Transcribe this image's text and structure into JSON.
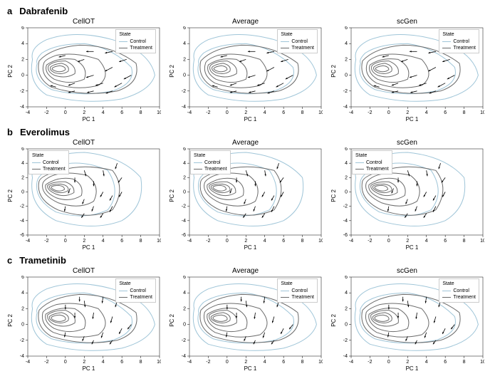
{
  "global": {
    "xlabel": "PC 1",
    "ylabel": "PC 2",
    "legend_title": "State",
    "legend_items": [
      {
        "label": "Control",
        "color": "#9fc5d8"
      },
      {
        "label": "Treatment",
        "color": "#6b6b6b"
      }
    ],
    "control_color": "#9fc5d8",
    "treatment_color": "#6b6b6b",
    "arrow_color": "#000000",
    "background": "#ffffff",
    "axis_fontsize": 8,
    "tick_fontsize": 7,
    "title_fontsize": 10
  },
  "rows": [
    {
      "key": "a",
      "label": "a",
      "title": "Dabrafenib",
      "xlim": [
        -4,
        10
      ],
      "ylim": [
        -4,
        6
      ],
      "xticks": [
        -4,
        -2,
        0,
        2,
        4,
        6,
        8,
        10
      ],
      "yticks": [
        -4,
        -2,
        0,
        2,
        4,
        6
      ],
      "panels": [
        {
          "title": "CellOT",
          "legend_pos": "tr"
        },
        {
          "title": "Average",
          "legend_pos": "tr"
        },
        {
          "title": "scGen",
          "legend_pos": "tr"
        }
      ],
      "contours": {
        "control": [
          "M-3.5,2 Q-4,-1 -2,-2.5 Q2,-3.8 6,-3 Q9,-2 9.5,0 Q9,3 5,4.5 Q1,5.8 -2,4.5 Q-3.8,3.5 -3.5,2 Z",
          "M-3,1.5 Q-3.5,-0.5 -1.5,-1.8 Q1.5,-2.8 5,-2 Q7.5,-1 7,1 Q5,3.5 2,4 Q-1,4 -2.5,2.8 Q-3.2,2 -3,1.5 Z"
        ],
        "treatment": [
          "M-2.8,1.8 Q-3.2,-0.3 -1.5,-1.5 Q2,-2.8 5.5,-2 Q8,-1 7.5,1.5 Q5,3.8 1.5,3.8 Q-1.5,3.5 -2.8,1.8 Z",
          "M-2.3,1.5 Q-2.7,0 -1.3,-1 Q1,-2 3.5,-1.3 Q5,0 3.5,2 Q1,3 -1,2.5 Q-2.2,2 -2.3,1.5 Z",
          "M-2,1.3 Q-2.3,0.3 -1.2,-0.5 Q0.5,-1.3 2,-0.5 Q2.5,1 1,2 Q-0.8,2.3 -2,1.3 Z",
          "M-1.8,1.2 Q-2,0.5 -1.2,0 Q0,-0.5 1,0.2 Q1.2,1.2 0,1.8 Q-1.3,1.8 -1.8,1.2 Z",
          "M-1.6,1 Q-1.7,0.6 -1.1,0.3 Q-0.3,0 0.3,0.5 Q0.5,1.2 -0.4,1.5 Q-1.3,1.4 -1.6,1 Z",
          "M-1.4,0.9 Q-1.5,0.7 -1,0.5 Q-0.4,0.3 0,0.7 Q0,1.1 -0.6,1.2 Q-1.2,1.1 -1.4,0.9 Z"
        ]
      },
      "arrows": [
        [
          3,
          3,
          2.2,
          3
        ],
        [
          5,
          3,
          4.2,
          2.8
        ],
        [
          6.5,
          2,
          5.7,
          1.7
        ],
        [
          5,
          1,
          4.2,
          0.5
        ],
        [
          3,
          0,
          2.2,
          -0.3
        ],
        [
          1,
          -1,
          0.3,
          -1.3
        ],
        [
          4,
          -1,
          3.2,
          -1.3
        ],
        [
          6,
          -1,
          5.2,
          -1.5
        ],
        [
          7,
          0,
          6.2,
          -0.5
        ],
        [
          2,
          2,
          1.3,
          1.7
        ],
        [
          0,
          2.5,
          -0.7,
          2.3
        ],
        [
          1,
          -2,
          0.3,
          -2.2
        ],
        [
          5,
          -2,
          4.3,
          -2.3
        ],
        [
          3,
          -2,
          2.3,
          -2.2
        ],
        [
          -1,
          -1.5,
          -1.6,
          -1.3
        ]
      ]
    },
    {
      "key": "b",
      "label": "b",
      "title": "Everolimus",
      "xlim": [
        -4,
        10
      ],
      "ylim": [
        -6,
        6
      ],
      "xticks": [
        -4,
        -2,
        0,
        2,
        4,
        6,
        8,
        10
      ],
      "yticks": [
        -6,
        -4,
        -2,
        0,
        2,
        4,
        6
      ],
      "panels": [
        {
          "title": "CellOT",
          "legend_pos": "tl"
        },
        {
          "title": "Average",
          "legend_pos": "tl"
        },
        {
          "title": "scGen",
          "legend_pos": "tl"
        }
      ],
      "contours": {
        "control": [
          "M-3.5,2 Q-4,-2 -1,-4 Q3,-5.5 6,-4 Q8.5,-2 8,2 Q6,5 2,5.5 Q-1,5.5 -3,3.5 Q-3.7,2.8 -3.5,2 Z",
          "M-3,1.5 Q-3.4,-1 -1,-2.8 Q2,-4 4.5,-2.5 Q6,0 4.5,3 Q2,4.5 -0.5,3.8 Q-2.8,2.8 -3,1.5 Z"
        ],
        "treatment": [
          "M-2.8,1.5 Q-3.2,-1 -0.8,-2.5 Q2.5,-4 5,-2.5 Q6.5,0.5 5,3 Q2,4 -0.5,3 Q-2.6,2.3 -2.8,1.5 Z",
          "M-2.4,1.2 Q-2.7,-0.3 -0.8,-1.5 Q1.5,-2.5 3,-1.3 Q3.8,0.8 2.3,2.3 Q0,3 -1.5,2.2 Q-2.3,1.7 -2.4,1.2 Z",
          "M-2.1,1 Q-2.3,0 -1,-0.8 Q0.5,-1.5 1.7,-0.5 Q2,1 0.8,1.8 Q-0.8,2.2 -2.1,1 Z",
          "M-1.9,0.9 Q-2,0.3 -1,-0.3 Q0,-0.8 0.9,-0.1 Q1,0.9 0,1.4 Q-1.3,1.5 -1.9,0.9 Z",
          "M-1.7,0.8 Q-1.8,0.4 -1,0 Q-0.3,-0.3 0.3,0.2 Q0.4,0.9 -0.5,1.1 Q-1.4,1.1 -1.7,0.8 Z",
          "M-1.5,0.7 Q-1.55,0.45 -1,0.2 Q-0.5,0 -0.1,0.35 Q-0.1,0.8 -0.7,0.9 Q-1.3,0.9 -1.5,0.7 Z"
        ]
      },
      "arrows": [
        [
          2,
          3,
          2.2,
          2.2
        ],
        [
          4,
          3,
          4.1,
          2.2
        ],
        [
          5.5,
          4,
          5.3,
          3.2
        ],
        [
          6,
          2,
          5.6,
          1.3
        ],
        [
          4,
          0,
          3.7,
          -0.7
        ],
        [
          2,
          -1,
          1.8,
          -1.7
        ],
        [
          0,
          -2,
          -0.1,
          -2.7
        ],
        [
          3,
          -2,
          2.8,
          -2.7
        ],
        [
          5,
          -2,
          4.7,
          -2.8
        ],
        [
          1,
          2,
          1,
          1.3
        ],
        [
          3,
          1.5,
          3,
          0.8
        ],
        [
          5,
          -0.5,
          4.7,
          -1.2
        ],
        [
          2,
          -3,
          1.7,
          -3.6
        ],
        [
          4,
          -3,
          3.7,
          -3.6
        ],
        [
          6,
          0,
          5.7,
          -0.7
        ],
        [
          0.5,
          0.5,
          0.3,
          -0.2
        ]
      ]
    },
    {
      "key": "c",
      "label": "c",
      "title": "Trametinib",
      "xlim": [
        -4,
        10
      ],
      "ylim": [
        -4,
        6
      ],
      "xticks": [
        -4,
        -2,
        0,
        2,
        4,
        6,
        8,
        10
      ],
      "yticks": [
        -4,
        -2,
        0,
        2,
        4,
        6
      ],
      "panels": [
        {
          "title": "CellOT",
          "legend_pos": "tr"
        },
        {
          "title": "Average",
          "legend_pos": "tr"
        },
        {
          "title": "scGen",
          "legend_pos": "tr"
        }
      ],
      "contours": {
        "control": [
          "M-3.5,2 Q-4,-1 -2,-2.5 Q2,-3.8 6,-3 Q9,-2 9.5,0 Q9,3 5,4.5 Q1,5.8 -2,4.5 Q-3.8,3.5 -3.5,2 Z",
          "M-3,1.5 Q-3.5,-0.5 -1.5,-1.8 Q1.5,-2.8 5,-2 Q7.5,-1 7,1 Q5,3.5 2,4 Q-1,4 -2.5,2.8 Q-3.2,2 -3,1.5 Z"
        ],
        "treatment": [
          "M-2.8,1.8 Q-3.2,-0.3 -1.5,-1.5 Q2,-2.8 5.5,-2 Q8,-1 7.5,1.5 Q5,3.8 1.5,3.8 Q-1.5,3.5 -2.8,1.8 Z",
          "M-2.4,1.5 Q-2.7,0 -1.3,-1 Q1,-2 3.5,-1.3 Q5,0 3.5,2 Q1,3 -1,2.5 Q-2.2,2 -2.4,1.5 Z",
          "M-2.1,1.3 Q-2.3,0.3 -1.2,-0.5 Q0.5,-1.3 2,-0.5 Q2.5,1 1,2 Q-0.8,2.3 -2.1,1.3 Z",
          "M-1.9,1.2 Q-2,0.5 -1.2,0 Q0,-0.5 1,0.2 Q1.2,1.2 0,1.8 Q-1.3,1.8 -1.9,1.2 Z",
          "M-1.7,1 Q-1.8,0.6 -1.1,0.3 Q-0.3,0 0.3,0.5 Q0.5,1.2 -0.4,1.5 Q-1.3,1.4 -1.7,1 Z",
          "M-1.5,0.9 Q-1.55,0.65 -1.05,0.45 Q-0.45,0.25 0,0.6 Q0.1,1.05 -0.6,1.2 Q-1.25,1.15 -1.5,0.9 Z"
        ]
      },
      "arrows": [
        [
          2,
          3,
          2.1,
          2.2
        ],
        [
          4,
          3.5,
          3.9,
          2.7
        ],
        [
          5.5,
          3,
          5.3,
          2.2
        ],
        [
          3,
          1.5,
          2.9,
          0.7
        ],
        [
          5,
          1,
          4.8,
          0.2
        ],
        [
          6,
          -0.5,
          5.7,
          -1.2
        ],
        [
          4,
          -1,
          3.8,
          -1.7
        ],
        [
          2,
          -1.5,
          1.8,
          -2.1
        ],
        [
          0,
          -1,
          -0.1,
          -1.6
        ],
        [
          1,
          1.5,
          1,
          0.8
        ],
        [
          0,
          2.5,
          0,
          1.9
        ],
        [
          3,
          -2,
          2.8,
          -2.5
        ],
        [
          5,
          -2,
          4.7,
          -2.5
        ],
        [
          7,
          0,
          6.6,
          -0.6
        ],
        [
          1.5,
          3.5,
          1.5,
          2.9
        ]
      ]
    }
  ]
}
